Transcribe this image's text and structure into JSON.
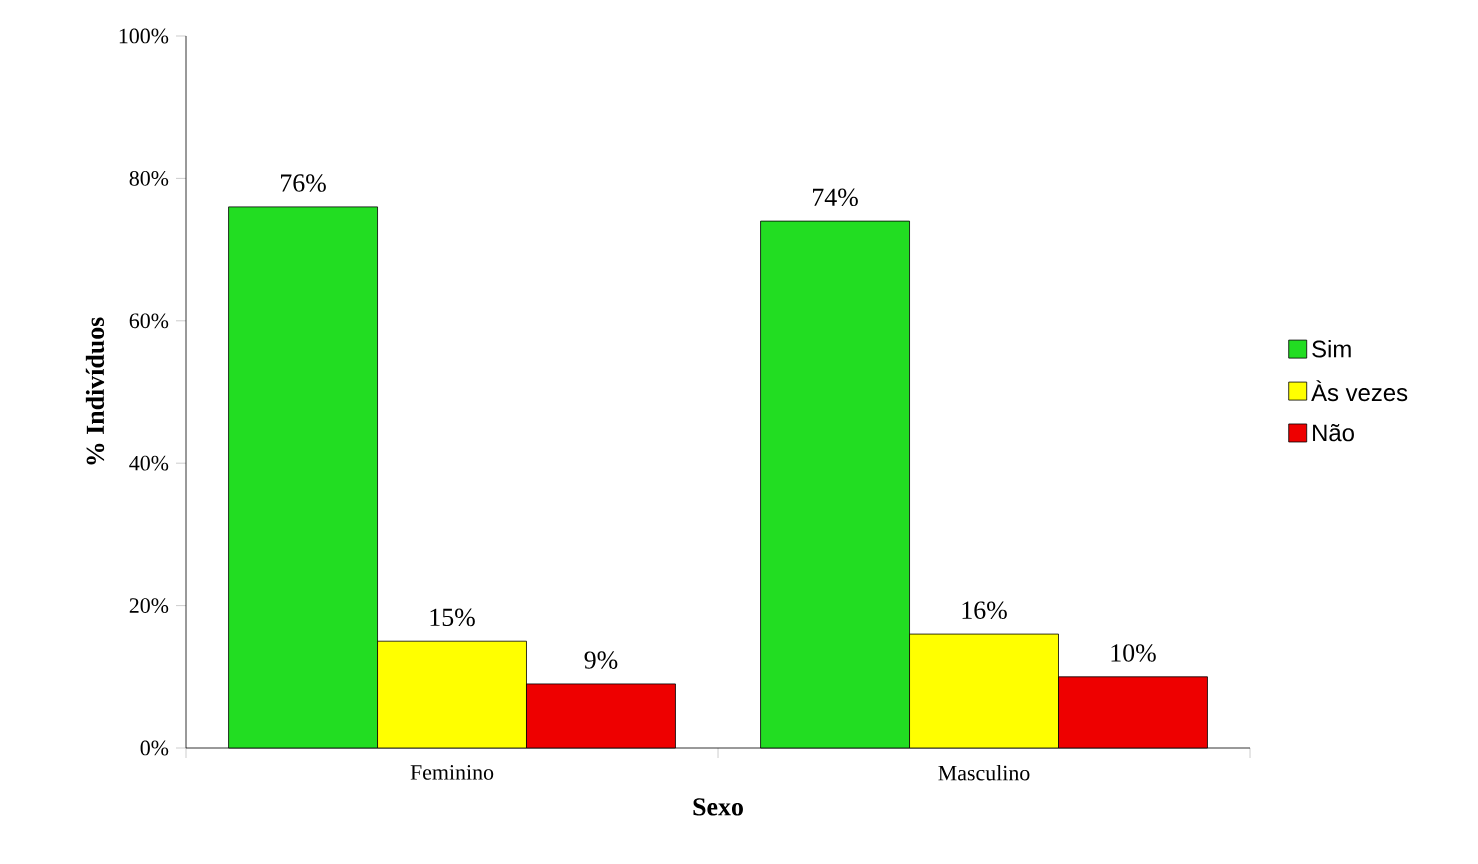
{
  "chart_data": {
    "type": "bar",
    "xlabel": "Sexo",
    "ylabel": "% Indivíduos",
    "categories": [
      "Feminino",
      "Masculino"
    ],
    "series": [
      {
        "name": "Sim",
        "color": "#22dd22",
        "values": [
          76,
          74
        ],
        "value_labels": [
          "76%",
          "74%"
        ]
      },
      {
        "name": "Às vezes",
        "color": "#ffff00",
        "values": [
          15,
          16
        ],
        "value_labels": [
          "15%",
          "16%"
        ]
      },
      {
        "name": "Não",
        "color": "#ee0000",
        "values": [
          9,
          10
        ],
        "value_labels": [
          "9%",
          "10%"
        ]
      }
    ],
    "ylim": [
      0,
      100
    ],
    "yticks": [
      {
        "value": 0,
        "label": "0%"
      },
      {
        "value": 20,
        "label": "20%"
      },
      {
        "value": 40,
        "label": "40%"
      },
      {
        "value": 60,
        "label": "60%"
      },
      {
        "value": 80,
        "label": "80%"
      },
      {
        "value": 100,
        "label": "100%"
      }
    ],
    "grid": false,
    "legend": "right"
  }
}
